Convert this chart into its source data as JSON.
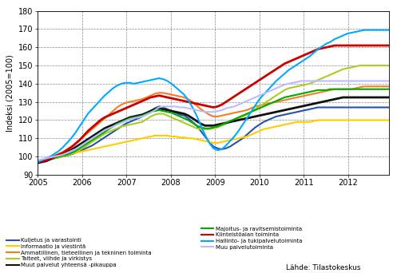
{
  "ylabel": "Indeksi (2005=100)",
  "ylim": [
    90,
    180
  ],
  "yticks": [
    90,
    100,
    110,
    120,
    130,
    140,
    150,
    160,
    170,
    180
  ],
  "xlim": [
    2005.0,
    2012.92
  ],
  "xticks": [
    2005,
    2006,
    2007,
    2008,
    2009,
    2010,
    2011,
    2012
  ],
  "source_text": "Lähde: Tilastokeskus",
  "series": {
    "Kuljetus ja varastointi": {
      "color": "#2255aa",
      "linewidth": 1.5,
      "data": [
        97.0,
        97.5,
        98.0,
        98.5,
        99.0,
        99.5,
        100.0,
        100.5,
        101.2,
        102.0,
        103.0,
        104.0,
        105.0,
        106.0,
        107.5,
        109.0,
        110.5,
        112.0,
        113.5,
        115.0,
        116.5,
        118.0,
        119.0,
        120.0,
        121.0,
        122.0,
        123.5,
        125.0,
        126.5,
        127.5,
        127.0,
        126.0,
        125.0,
        124.0,
        123.0,
        122.5,
        121.0,
        119.0,
        117.0,
        114.0,
        111.0,
        108.0,
        105.5,
        104.5,
        104.0,
        104.5,
        105.5,
        107.0,
        108.5,
        110.0,
        112.0,
        114.0,
        116.0,
        117.5,
        119.0,
        120.0,
        121.0,
        122.0,
        122.5,
        123.0,
        123.5,
        124.0,
        124.5,
        125.0,
        125.5,
        126.0,
        126.5,
        127.0,
        127.0,
        127.0,
        127.0,
        127.0,
        127.0,
        127.0,
        127.0,
        127.0,
        127.0,
        127.0,
        127.0,
        127.0,
        127.0,
        127.0,
        127.0,
        127.0,
        127.0,
        127.5,
        128.0
      ]
    },
    "Informaatio ja viestintä": {
      "color": "#ffcc00",
      "linewidth": 1.5,
      "data": [
        97.5,
        98.0,
        98.5,
        99.0,
        99.5,
        100.0,
        100.5,
        101.0,
        101.5,
        102.0,
        102.5,
        103.0,
        103.5,
        104.0,
        104.5,
        105.0,
        105.5,
        106.0,
        106.5,
        107.0,
        107.5,
        108.0,
        108.5,
        109.0,
        109.5,
        110.0,
        110.5,
        111.0,
        111.5,
        111.5,
        111.5,
        111.5,
        111.0,
        111.0,
        110.5,
        110.5,
        110.0,
        110.0,
        109.5,
        109.0,
        108.5,
        108.0,
        107.5,
        107.5,
        108.0,
        108.5,
        109.0,
        109.5,
        110.0,
        110.5,
        111.0,
        112.0,
        113.0,
        114.0,
        115.0,
        115.5,
        116.0,
        116.5,
        117.0,
        117.5,
        118.0,
        118.5,
        119.0,
        119.0,
        119.0,
        119.0,
        119.5,
        120.0,
        120.0,
        120.0,
        120.0,
        120.0,
        120.0,
        120.0,
        120.0,
        120.0,
        120.0,
        120.0,
        120.0,
        120.0,
        120.0,
        120.0,
        120.0,
        120.0,
        120.0,
        120.0,
        120.0
      ]
    },
    "Ammatillinen, tieteellinen ja tekninen toiminta": {
      "color": "#f57f20",
      "linewidth": 1.5,
      "data": [
        97.5,
        98.0,
        98.5,
        99.5,
        100.5,
        101.5,
        102.5,
        104.0,
        105.5,
        107.0,
        109.0,
        111.0,
        113.0,
        115.0,
        117.0,
        119.0,
        121.0,
        123.0,
        125.0,
        127.0,
        128.5,
        129.5,
        130.0,
        130.5,
        131.0,
        131.5,
        132.5,
        133.5,
        134.5,
        135.0,
        135.0,
        134.5,
        134.0,
        133.5,
        133.0,
        132.5,
        131.5,
        130.0,
        128.0,
        126.0,
        124.5,
        123.0,
        122.0,
        122.0,
        122.5,
        123.0,
        123.5,
        124.0,
        124.5,
        125.0,
        125.5,
        126.5,
        127.5,
        128.0,
        128.5,
        129.0,
        129.5,
        130.0,
        130.5,
        131.0,
        131.5,
        132.0,
        132.5,
        133.0,
        133.5,
        134.0,
        134.5,
        135.0,
        135.5,
        136.0,
        136.5,
        137.0,
        137.0,
        137.0,
        137.0,
        137.0,
        137.5,
        138.0,
        138.5,
        138.5,
        138.5,
        138.5,
        138.5,
        138.5,
        138.5,
        138.5,
        138.5
      ]
    },
    "Taiteet, viihde ja virkistys": {
      "color": "#aacc22",
      "linewidth": 1.5,
      "data": [
        97.0,
        97.5,
        98.0,
        98.5,
        99.0,
        99.5,
        100.0,
        100.5,
        101.5,
        102.5,
        103.5,
        105.0,
        106.5,
        108.0,
        109.5,
        111.0,
        112.5,
        113.5,
        114.5,
        115.5,
        116.5,
        117.0,
        117.5,
        118.0,
        118.5,
        119.0,
        120.5,
        122.0,
        123.0,
        123.5,
        123.5,
        122.5,
        121.5,
        120.5,
        119.5,
        118.5,
        117.5,
        116.5,
        115.5,
        115.0,
        115.0,
        115.0,
        115.5,
        116.0,
        117.0,
        118.0,
        119.0,
        120.0,
        121.0,
        122.0,
        123.0,
        124.5,
        126.0,
        127.5,
        129.0,
        130.5,
        132.0,
        133.5,
        135.0,
        136.5,
        137.5,
        138.0,
        138.5,
        139.0,
        139.5,
        140.0,
        141.0,
        142.0,
        143.0,
        144.0,
        145.0,
        146.0,
        147.0,
        148.0,
        148.5,
        149.0,
        149.5,
        150.0,
        150.0,
        150.0,
        150.0,
        150.0,
        150.0,
        150.0,
        150.0,
        150.0,
        150.0
      ]
    },
    "Muut palvelut yhteensä -pikauppa": {
      "color": "#111111",
      "linewidth": 2.0,
      "data": [
        96.5,
        97.0,
        97.5,
        98.5,
        99.5,
        100.5,
        101.5,
        102.5,
        103.5,
        105.0,
        106.5,
        108.0,
        109.5,
        111.0,
        112.5,
        114.0,
        115.5,
        116.5,
        117.5,
        118.5,
        119.5,
        120.5,
        121.5,
        122.0,
        122.5,
        123.0,
        124.0,
        125.0,
        126.0,
        126.5,
        126.0,
        125.5,
        125.0,
        124.5,
        124.0,
        123.5,
        122.5,
        121.0,
        119.5,
        118.0,
        117.0,
        117.0,
        117.0,
        117.5,
        118.0,
        118.5,
        119.0,
        119.5,
        120.0,
        120.5,
        121.0,
        121.5,
        122.0,
        122.5,
        123.0,
        123.5,
        124.0,
        124.5,
        125.0,
        125.5,
        126.0,
        126.5,
        127.0,
        127.5,
        128.0,
        128.5,
        129.0,
        129.5,
        130.0,
        130.5,
        131.0,
        131.5,
        132.0,
        132.5,
        132.5,
        132.5,
        132.5,
        132.5,
        132.5,
        132.5,
        132.5,
        132.5,
        132.5,
        132.5,
        132.5,
        132.5,
        133.0
      ]
    },
    "Majoitus- ja ravitsemistoiminta": {
      "color": "#00aa00",
      "linewidth": 1.5,
      "data": [
        97.5,
        98.0,
        98.5,
        99.0,
        99.5,
        100.0,
        100.5,
        101.0,
        102.0,
        103.0,
        104.5,
        106.0,
        107.5,
        109.0,
        110.5,
        112.0,
        113.5,
        115.0,
        116.5,
        118.0,
        119.0,
        120.0,
        121.0,
        121.5,
        122.0,
        122.5,
        123.5,
        124.5,
        125.0,
        125.5,
        125.0,
        124.5,
        124.0,
        123.0,
        122.0,
        121.0,
        120.0,
        118.5,
        117.0,
        116.0,
        115.5,
        115.5,
        116.0,
        116.5,
        117.5,
        118.5,
        119.5,
        120.5,
        121.5,
        122.5,
        123.5,
        124.5,
        125.5,
        126.5,
        127.5,
        128.5,
        129.5,
        130.5,
        131.5,
        132.5,
        133.0,
        133.5,
        134.0,
        134.5,
        135.0,
        135.5,
        136.0,
        136.5,
        136.5,
        136.5,
        137.0,
        137.0,
        137.0,
        137.0,
        137.0,
        137.0,
        137.0,
        137.0,
        137.0,
        137.0,
        137.0,
        137.0,
        137.0,
        137.0,
        137.0,
        137.0,
        137.0
      ]
    },
    "Kiinteistöalan toiminta": {
      "color": "#cc0000",
      "linewidth": 2.0,
      "data": [
        97.0,
        97.5,
        98.0,
        99.0,
        100.0,
        101.0,
        102.0,
        103.5,
        105.0,
        107.0,
        109.0,
        111.5,
        114.0,
        116.0,
        118.0,
        120.0,
        121.5,
        122.5,
        123.5,
        124.5,
        125.5,
        126.5,
        127.5,
        128.5,
        129.5,
        130.5,
        131.5,
        132.5,
        133.0,
        133.5,
        133.0,
        132.5,
        132.0,
        131.5,
        131.0,
        130.5,
        130.0,
        129.5,
        129.0,
        128.5,
        128.0,
        127.5,
        127.0,
        127.5,
        128.5,
        130.0,
        131.5,
        133.0,
        134.5,
        136.0,
        137.5,
        139.0,
        140.5,
        142.0,
        143.5,
        145.0,
        146.5,
        148.0,
        149.5,
        151.0,
        152.0,
        153.0,
        154.0,
        155.0,
        156.0,
        157.0,
        158.0,
        159.0,
        159.5,
        160.0,
        160.5,
        161.0,
        161.0,
        161.0,
        161.0,
        161.0,
        161.0,
        161.0,
        161.0,
        161.0,
        161.0,
        161.0,
        161.0,
        161.0,
        161.0,
        161.0,
        161.0
      ]
    },
    "Hallinto- ja tukipalvelutoiminta": {
      "color": "#00aaff",
      "linewidth": 1.5,
      "data": [
        97.0,
        98.0,
        99.0,
        100.0,
        101.5,
        103.0,
        105.0,
        107.5,
        110.0,
        113.0,
        116.5,
        120.0,
        123.5,
        126.0,
        128.5,
        131.0,
        133.5,
        135.5,
        137.5,
        139.0,
        140.0,
        140.5,
        140.5,
        140.0,
        140.5,
        141.0,
        141.5,
        142.0,
        142.5,
        143.0,
        142.5,
        141.5,
        140.0,
        138.0,
        136.0,
        134.0,
        131.0,
        127.0,
        122.5,
        117.0,
        112.0,
        107.5,
        104.5,
        103.5,
        104.0,
        106.0,
        108.5,
        111.0,
        114.0,
        117.5,
        121.0,
        124.5,
        128.0,
        131.5,
        134.0,
        136.5,
        139.0,
        141.5,
        143.5,
        145.5,
        147.5,
        149.0,
        150.5,
        152.0,
        153.5,
        155.0,
        157.0,
        159.0,
        160.5,
        162.0,
        163.0,
        164.5,
        165.5,
        166.5,
        167.5,
        168.0,
        168.5,
        169.0,
        169.5,
        169.5,
        169.5,
        169.5,
        169.5,
        169.5,
        169.5,
        169.5,
        169.5
      ]
    },
    "Muu palvelutoiminta": {
      "color": "#bbbbff",
      "linewidth": 1.5,
      "data": [
        98.0,
        98.5,
        99.0,
        99.5,
        100.0,
        100.5,
        101.0,
        102.0,
        103.0,
        104.0,
        105.5,
        107.0,
        108.5,
        110.0,
        111.5,
        113.0,
        114.5,
        115.5,
        116.5,
        117.5,
        118.5,
        119.5,
        120.5,
        121.0,
        121.5,
        122.0,
        123.0,
        124.0,
        125.5,
        127.0,
        127.5,
        127.5,
        127.5,
        127.5,
        127.0,
        127.0,
        126.5,
        126.0,
        125.5,
        125.0,
        124.5,
        124.5,
        124.5,
        125.0,
        125.5,
        126.5,
        127.0,
        127.5,
        128.5,
        129.5,
        130.5,
        131.5,
        132.5,
        133.5,
        134.5,
        135.5,
        136.5,
        137.5,
        138.5,
        139.5,
        140.0,
        140.5,
        141.0,
        141.5,
        141.5,
        141.5,
        141.5,
        141.5,
        141.5,
        141.5,
        141.5,
        141.5,
        141.5,
        141.5,
        141.5,
        141.5,
        141.5,
        141.5,
        141.5,
        141.5,
        141.5,
        141.5,
        141.5,
        141.5,
        141.5,
        141.5,
        141.5
      ]
    }
  },
  "legend_left": [
    {
      "label": "Kuljetus ja varastointi",
      "color": "#2255aa"
    },
    {
      "label": "Informaatio ja viestintä",
      "color": "#ffcc00"
    },
    {
      "label": "Ammatillinen, tieteellinen ja tekninen toiminta",
      "color": "#f57f20"
    },
    {
      "label": "Taiteet, viihde ja virkistys",
      "color": "#aacc22"
    },
    {
      "label": "Muut palvelut yhteensä -pikauppa",
      "color": "#111111"
    }
  ],
  "legend_right": [
    {
      "label": "Majoitus- ja ravitsemistoiminta",
      "color": "#00aa00"
    },
    {
      "label": "Kiinteistöalan toiminta",
      "color": "#cc0000"
    },
    {
      "label": "Hallinto- ja tukipalvelutoiminta",
      "color": "#00aaff"
    },
    {
      "label": "Muu palvelutoiminta",
      "color": "#bbbbff"
    }
  ]
}
